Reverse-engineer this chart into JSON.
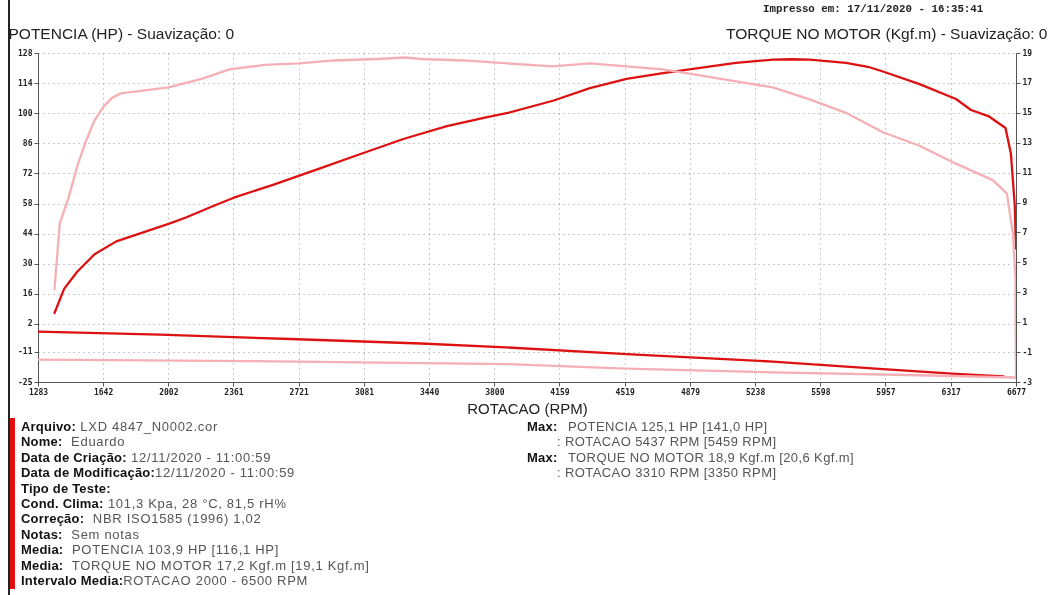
{
  "chart_data": {
    "type": "line",
    "xlabel": "ROTACAO (RPM)",
    "ylabel": "POTENCIA (HP) - Suavização: 0",
    "y2label": "TORQUE NO MOTOR (Kgf.m) - Suavização: 0",
    "xlim": [
      1283,
      6677
    ],
    "xticks": [
      1283,
      1642,
      2002,
      2361,
      2721,
      3081,
      3440,
      3800,
      4159,
      4519,
      4879,
      5238,
      5598,
      5957,
      6317,
      6677
    ],
    "ylim": [
      -25,
      128
    ],
    "yticks": [
      128,
      114,
      100,
      86,
      72,
      58,
      44,
      30,
      16,
      2,
      -11,
      -25
    ],
    "y2lim": [
      -3,
      19
    ],
    "y2ticks": [
      19,
      17,
      15,
      13,
      11,
      9,
      7,
      5,
      3,
      1,
      -1,
      -3
    ],
    "grid": true,
    "series": [
      {
        "color": "#dd1111",
        "axis": "y",
        "x": [
          1374,
          1427,
          1499,
          1595,
          1715,
          1859,
          2003,
          2099,
          2243,
          2363,
          2579,
          2819,
          3058,
          3298,
          3538,
          3754,
          3874,
          4123,
          4327,
          4529,
          4730,
          4934,
          5132,
          5336,
          5437,
          5539,
          5739,
          5860,
          5943,
          6145,
          6346,
          6429,
          6528,
          6619,
          6649,
          6670,
          6677
        ],
        "values": [
          7.1,
          18.3,
          26.3,
          34.4,
          40.4,
          44.5,
          48.5,
          51.5,
          56.6,
          60.7,
          66.7,
          73.8,
          80.9,
          88.0,
          94.0,
          98.1,
          100.1,
          105.8,
          111.7,
          116.0,
          118.6,
          121.1,
          123.4,
          124.9,
          125.1,
          124.9,
          123.4,
          121.6,
          119.4,
          113.5,
          106.6,
          101.5,
          98.5,
          93.1,
          81.1,
          57.3,
          37.0
        ]
      },
      {
        "color": "#f4b0b4",
        "axis": "y2",
        "x": [
          1374,
          1403,
          1451,
          1499,
          1547,
          1595,
          1643,
          1691,
          1739,
          2003,
          2195,
          2339,
          2531,
          2723,
          2914,
          3154,
          3310,
          3394,
          3634,
          3874,
          4123,
          4327,
          4529,
          4730,
          4934,
          5132,
          5336,
          5539,
          5739,
          5943,
          6145,
          6346,
          6549,
          6627,
          6660,
          6674,
          6677
        ],
        "values": [
          3.2,
          7.6,
          9.3,
          11.4,
          13.1,
          14.5,
          15.4,
          16.0,
          16.3,
          16.7,
          17.3,
          17.9,
          18.2,
          18.3,
          18.5,
          18.6,
          18.7,
          18.6,
          18.5,
          18.3,
          18.1,
          18.3,
          18.1,
          17.9,
          17.5,
          17.1,
          16.7,
          15.9,
          15.0,
          13.7,
          12.8,
          11.6,
          10.5,
          9.6,
          6.9,
          4.0,
          -2.8
        ]
      },
      {
        "color": "#dd1111",
        "axis": "y",
        "x": [
          1283,
          1955,
          2675,
          3394,
          3862,
          4529,
          5336,
          5943,
          6346,
          6609
        ],
        "values": [
          -1.6,
          -3.0,
          -5.0,
          -7.1,
          -8.9,
          -12.0,
          -15.5,
          -19.0,
          -21.2,
          -22.4
        ]
      },
      {
        "color": "#f4b0b4",
        "axis": "y2",
        "x": [
          1283,
          2435,
          3873,
          4529,
          5336,
          6145,
          6672
        ],
        "values": [
          -1.5,
          -1.6,
          -1.8,
          -2.1,
          -2.35,
          -2.55,
          -2.7
        ]
      }
    ],
    "annotations": [
      "Impresso em: 17/11/2020 - 16:35:41",
      "Arquivo: LXD 4847_N0002.cor",
      "Nome:  Eduardo",
      "Data de Criação: 12/11/2020 - 11:00:59",
      "Data de Modificação:12/11/2020 - 11:00:59",
      "Tipo de Teste:",
      "Cond. Clima: 101,3 Kpa, 28 °C, 81,5 rH%",
      "Correção:  NBR ISO1585 (1996) 1,02",
      "Notas:  Sem notas",
      "Media:  POTENCIA 103,9 HP [116,1 HP]",
      "Media:  TORQUE NO MOTOR 17,2 Kgf.m [19,1 Kgf.m]",
      "Intervalo Media:ROTACAO 2000 - 6500 RPM",
      "Max:  POTENCIA 125,1 HP [141,0 HP]",
      ": ROTACAO 5437 RPM [5459 RPM]",
      "Max:  TORQUE NO MOTOR 18,9 Kgf.m [20,6 Kgf.m]",
      ": ROTACAO 3310 RPM [3350 RPM]"
    ]
  }
}
